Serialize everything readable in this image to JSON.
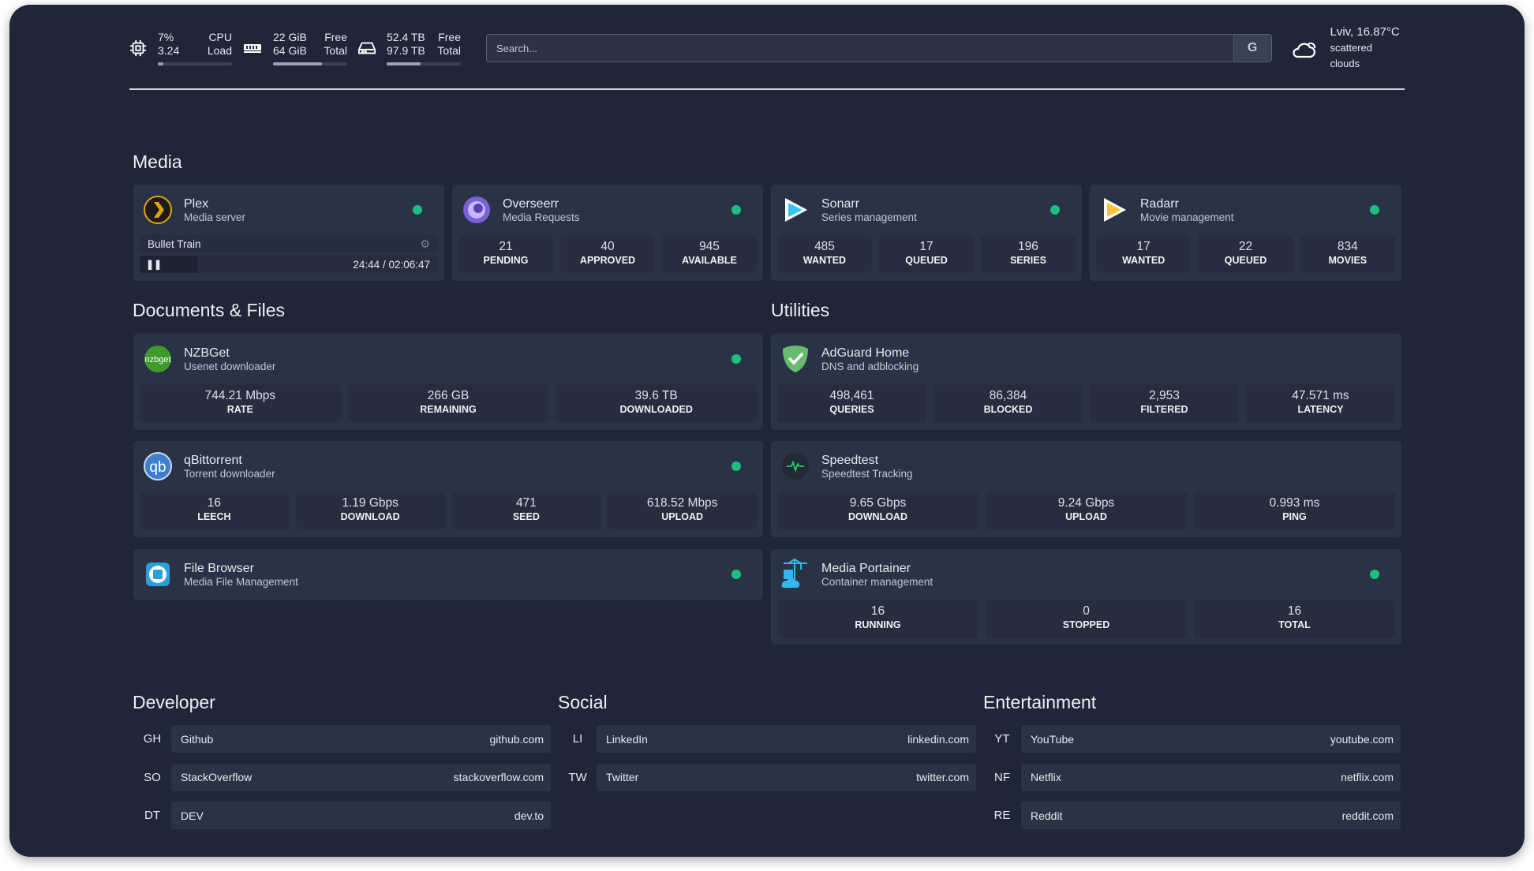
{
  "topbar": {
    "cpu": {
      "icon": "cpu-icon",
      "value1": "7%",
      "label1": "CPU",
      "value2": "3.24",
      "label2": "Load",
      "fill": 0.07
    },
    "memory": {
      "icon": "memory-icon",
      "value1": "22 GiB",
      "label1": "Free",
      "value2": "64 GiB",
      "label2": "Total",
      "fill": 0.66
    },
    "disk": {
      "icon": "disk-icon",
      "value1": "52.4 TB",
      "label1": "Free",
      "value2": "97.9 TB",
      "label2": "Total",
      "fill": 0.46
    },
    "search": {
      "placeholder": "Search...",
      "engine": "G"
    },
    "weather": {
      "icon": "cloud-sun-icon",
      "location": "Lviv, 16.87°C",
      "description": "scattered clouds"
    }
  },
  "sections": {
    "media": "Media",
    "documents": "Documents & Files",
    "utilities": "Utilities",
    "developer": "Developer",
    "social": "Social",
    "entertainment": "Entertainment"
  },
  "colors": {
    "background": "#1f2638",
    "card": "#2a3345",
    "status_ok": "#1dbf7e"
  },
  "media": [
    {
      "id": "plex",
      "title": "Plex",
      "subtitle": "Media server",
      "icon": "plex-icon",
      "now_playing": {
        "title": "Bullet Train",
        "time": "24:44 / 02:06:47",
        "state": "paused",
        "progress": 0.195
      }
    },
    {
      "id": "overseerr",
      "title": "Overseerr",
      "subtitle": "Media Requests",
      "icon": "overseerr-icon",
      "stats": [
        {
          "value": "21",
          "label": "PENDING"
        },
        {
          "value": "40",
          "label": "APPROVED"
        },
        {
          "value": "945",
          "label": "AVAILABLE"
        }
      ]
    },
    {
      "id": "sonarr",
      "title": "Sonarr",
      "subtitle": "Series management",
      "icon": "sonarr-icon",
      "stats": [
        {
          "value": "485",
          "label": "WANTED"
        },
        {
          "value": "17",
          "label": "QUEUED"
        },
        {
          "value": "196",
          "label": "SERIES"
        }
      ]
    },
    {
      "id": "radarr",
      "title": "Radarr",
      "subtitle": "Movie management",
      "icon": "radarr-icon",
      "stats": [
        {
          "value": "17",
          "label": "WANTED"
        },
        {
          "value": "22",
          "label": "QUEUED"
        },
        {
          "value": "834",
          "label": "MOVIES"
        }
      ]
    }
  ],
  "documents": [
    {
      "id": "nzbget",
      "title": "NZBGet",
      "subtitle": "Usenet downloader",
      "icon": "nzbget-icon",
      "stats": [
        {
          "value": "744.21 Mbps",
          "label": "RATE"
        },
        {
          "value": "266 GB",
          "label": "REMAINING"
        },
        {
          "value": "39.6 TB",
          "label": "DOWNLOADED"
        }
      ]
    },
    {
      "id": "qbittorrent",
      "title": "qBittorrent",
      "subtitle": "Torrent downloader",
      "icon": "qbittorrent-icon",
      "stats": [
        {
          "value": "16",
          "label": "LEECH"
        },
        {
          "value": "1.19 Gbps",
          "label": "DOWNLOAD"
        },
        {
          "value": "471",
          "label": "SEED"
        },
        {
          "value": "618.52 Mbps",
          "label": "UPLOAD"
        }
      ]
    },
    {
      "id": "filebrowser",
      "title": "File Browser",
      "subtitle": "Media File Management",
      "icon": "filebrowser-icon"
    }
  ],
  "utilities": [
    {
      "id": "adguard",
      "title": "AdGuard Home",
      "subtitle": "DNS and adblocking",
      "icon": "adguard-shield-icon",
      "nodot": true,
      "stats": [
        {
          "value": "498,461",
          "label": "QUERIES"
        },
        {
          "value": "86,384",
          "label": "BLOCKED"
        },
        {
          "value": "2,953",
          "label": "FILTERED"
        },
        {
          "value": "47.571 ms",
          "label": "LATENCY"
        }
      ]
    },
    {
      "id": "speedtest",
      "title": "Speedtest",
      "subtitle": "Speedtest Tracking",
      "icon": "speedtest-pulse-icon",
      "nodot": true,
      "stats": [
        {
          "value": "9.65 Gbps",
          "label": "DOWNLOAD"
        },
        {
          "value": "9.24 Gbps",
          "label": "UPLOAD"
        },
        {
          "value": "0.993 ms",
          "label": "PING"
        }
      ]
    },
    {
      "id": "portainer",
      "title": "Media Portainer",
      "subtitle": "Container management",
      "icon": "portainer-icon",
      "stats": [
        {
          "value": "16",
          "label": "RUNNING"
        },
        {
          "value": "0",
          "label": "STOPPED"
        },
        {
          "value": "16",
          "label": "TOTAL"
        }
      ]
    }
  ],
  "bookmarks": {
    "developer": [
      {
        "abbr": "GH",
        "name": "Github",
        "url": "github.com"
      },
      {
        "abbr": "SO",
        "name": "StackOverflow",
        "url": "stackoverflow.com"
      },
      {
        "abbr": "DT",
        "name": "DEV",
        "url": "dev.to"
      }
    ],
    "social": [
      {
        "abbr": "LI",
        "name": "LinkedIn",
        "url": "linkedin.com"
      },
      {
        "abbr": "TW",
        "name": "Twitter",
        "url": "twitter.com"
      }
    ],
    "entertainment": [
      {
        "abbr": "YT",
        "name": "YouTube",
        "url": "youtube.com"
      },
      {
        "abbr": "NF",
        "name": "Netflix",
        "url": "netflix.com"
      },
      {
        "abbr": "RE",
        "name": "Reddit",
        "url": "reddit.com"
      }
    ]
  }
}
